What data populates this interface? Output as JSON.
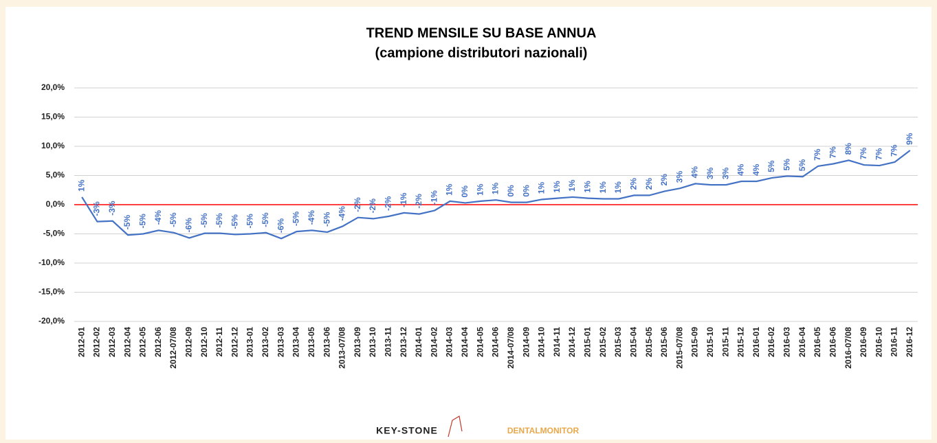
{
  "chart_data": {
    "type": "line",
    "title": "TREND MENSILE SU BASE ANNUA",
    "subtitle": "(campione distributori nazionali)",
    "categories": [
      "2012-01",
      "2012-02",
      "2012-03",
      "2012-04",
      "2012-05",
      "2012-06",
      "2012-07/08",
      "2012-09",
      "2012-10",
      "2012-11",
      "2012-12",
      "2013-01",
      "2013-02",
      "2013-03",
      "2013-04",
      "2013-05",
      "2013-06",
      "2013-07/08",
      "2013-09",
      "2013-10",
      "2013-11",
      "2013-12",
      "2014-01",
      "2014-02",
      "2014-03",
      "2014-04",
      "2014-05",
      "2014-06",
      "2014-07/08",
      "2014-09",
      "2014-10",
      "2014-11",
      "2014-12",
      "2015-01",
      "2015-02",
      "2015-03",
      "2015-04",
      "2015-05",
      "2015-06",
      "2015-07/08",
      "2015-09",
      "2015-10",
      "2015-11",
      "2015-12",
      "2016-01",
      "2016-02",
      "2016-03",
      "2016-04",
      "2016-05",
      "2016-06",
      "2016-07/08",
      "2016-09",
      "2016-10",
      "2016-11",
      "2016-12"
    ],
    "values": [
      1.3,
      -2.9,
      -2.8,
      -5.2,
      -5.0,
      -4.4,
      -4.8,
      -5.7,
      -4.9,
      -4.9,
      -5.1,
      -5.0,
      -4.8,
      -5.8,
      -4.6,
      -4.4,
      -4.7,
      -3.7,
      -2.2,
      -2.4,
      -2.0,
      -1.4,
      -1.6,
      -1.0,
      0.6,
      0.3,
      0.6,
      0.8,
      0.4,
      0.4,
      0.9,
      1.1,
      1.3,
      1.1,
      1.0,
      1.0,
      1.6,
      1.6,
      2.3,
      2.8,
      3.6,
      3.4,
      3.4,
      4.0,
      4.0,
      4.6,
      4.9,
      4.8,
      6.6,
      7.0,
      7.6,
      6.8,
      6.7,
      7.3,
      9.3
    ],
    "value_labels": [
      "1%",
      "-3%",
      "-3%",
      "-5%",
      "-5%",
      "-4%",
      "-5%",
      "-6%",
      "-5%",
      "-5%",
      "-5%",
      "-5%",
      "-5%",
      "-6%",
      "-5%",
      "-4%",
      "-5%",
      "-4%",
      "-2%",
      "-2%",
      "-2%",
      "-1%",
      "-2%",
      "-1%",
      "1%",
      "0%",
      "1%",
      "1%",
      "0%",
      "0%",
      "1%",
      "1%",
      "1%",
      "1%",
      "1%",
      "1%",
      "2%",
      "2%",
      "2%",
      "3%",
      "4%",
      "3%",
      "3%",
      "4%",
      "4%",
      "5%",
      "5%",
      "5%",
      "7%",
      "7%",
      "8%",
      "7%",
      "7%",
      "7%",
      "9%"
    ],
    "color": "#4472c4",
    "zero_line_color": "#ff0000",
    "ylim": [
      -20,
      20
    ],
    "yticks": [
      {
        "value": -20,
        "label": "-20,0%"
      },
      {
        "value": -15,
        "label": "-15,0%"
      },
      {
        "value": -10,
        "label": "-10,0%"
      },
      {
        "value": -5,
        "label": "-5,0%"
      },
      {
        "value": 0,
        "label": "0,0%"
      },
      {
        "value": 5,
        "label": "5,0%"
      },
      {
        "value": 10,
        "label": "10,0%"
      },
      {
        "value": 15,
        "label": "15,0%"
      },
      {
        "value": 20,
        "label": "20,0%"
      }
    ],
    "grid": true
  },
  "logos": [
    "KEY-STONE",
    "DENTALMONITOR"
  ]
}
